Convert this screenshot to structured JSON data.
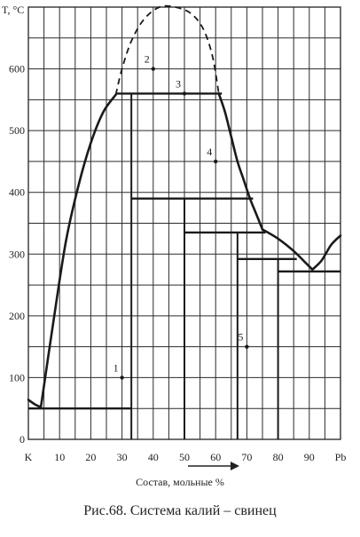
{
  "figure": {
    "caption": "Рис.68. Система калий – свинец",
    "y_axis_label": "T, °C",
    "x_axis_label": "Состав,  мольные %"
  },
  "chart_data": {
    "type": "phase-diagram",
    "x_range": [
      0,
      100
    ],
    "y_range": [
      0,
      700
    ],
    "x_ticks": [
      {
        "value": 0,
        "label": "K"
      },
      {
        "value": 10,
        "label": "10"
      },
      {
        "value": 20,
        "label": "20"
      },
      {
        "value": 30,
        "label": "30"
      },
      {
        "value": 40,
        "label": "40"
      },
      {
        "value": 50,
        "label": "50"
      },
      {
        "value": 60,
        "label": "60"
      },
      {
        "value": 70,
        "label": "70"
      },
      {
        "value": 80,
        "label": "80"
      },
      {
        "value": 90,
        "label": "90"
      },
      {
        "value": 100,
        "label": "Pb"
      }
    ],
    "y_ticks": [
      {
        "value": 0,
        "label": "0"
      },
      {
        "value": 100,
        "label": "100"
      },
      {
        "value": 200,
        "label": "200"
      },
      {
        "value": 300,
        "label": "300"
      },
      {
        "value": 400,
        "label": "400"
      },
      {
        "value": 500,
        "label": "500"
      },
      {
        "value": 600,
        "label": "600"
      }
    ],
    "grid": true,
    "liquidus": [
      {
        "segment": "K-eutectic",
        "points": [
          [
            0,
            64
          ],
          [
            2,
            57
          ],
          [
            4,
            52
          ]
        ]
      },
      {
        "segment": "eutectic-to-KPb",
        "points": [
          [
            4,
            52
          ],
          [
            8,
            190
          ],
          [
            12,
            320
          ],
          [
            16,
            410
          ],
          [
            20,
            480
          ],
          [
            24,
            530
          ],
          [
            28,
            558
          ]
        ]
      },
      {
        "segment": "KPb2-descent",
        "points": [
          [
            61,
            560
          ],
          [
            63,
            530
          ],
          [
            65,
            490
          ],
          [
            67,
            450
          ],
          [
            69,
            420
          ],
          [
            71,
            390
          ],
          [
            73,
            365
          ],
          [
            75,
            340
          ]
        ]
      },
      {
        "segment": "to-eutectic-90",
        "points": [
          [
            75,
            340
          ],
          [
            80,
            325
          ],
          [
            85,
            305
          ],
          [
            89,
            285
          ],
          [
            91,
            275
          ]
        ]
      },
      {
        "segment": "Pb-side",
        "points": [
          [
            91,
            275
          ],
          [
            94,
            290
          ],
          [
            97,
            315
          ],
          [
            100,
            330
          ]
        ]
      }
    ],
    "metastable_dome": {
      "style": "dashed",
      "points": [
        [
          28,
          558
        ],
        [
          30,
          600
        ],
        [
          33,
          645
        ],
        [
          37,
          680
        ],
        [
          42,
          700
        ],
        [
          47,
          700
        ],
        [
          52,
          690
        ],
        [
          56,
          665
        ],
        [
          59,
          620
        ],
        [
          61,
          560
        ]
      ]
    },
    "horizontal_lines": [
      {
        "y": 50,
        "x": [
          0,
          33
        ]
      },
      {
        "y": 560,
        "x": [
          28,
          62
        ]
      },
      {
        "y": 390,
        "x": [
          33,
          72
        ]
      },
      {
        "y": 335,
        "x": [
          50,
          76
        ]
      },
      {
        "y": 292,
        "x": [
          67,
          86
        ]
      },
      {
        "y": 272,
        "x": [
          80,
          100
        ]
      }
    ],
    "vertical_lines": [
      {
        "x": 33,
        "y": [
          0,
          560
        ]
      },
      {
        "x": 50,
        "y": [
          0,
          390
        ]
      },
      {
        "x": 67,
        "y": [
          0,
          335
        ]
      },
      {
        "x": 80,
        "y": [
          0,
          292
        ]
      }
    ],
    "point_labels": [
      {
        "label": "1",
        "x": 30,
        "y": 100
      },
      {
        "label": "2",
        "x": 40,
        "y": 600
      },
      {
        "label": "3",
        "x": 50,
        "y": 560
      },
      {
        "label": "4",
        "x": 60,
        "y": 450
      },
      {
        "label": "5",
        "x": 70,
        "y": 150
      }
    ]
  }
}
